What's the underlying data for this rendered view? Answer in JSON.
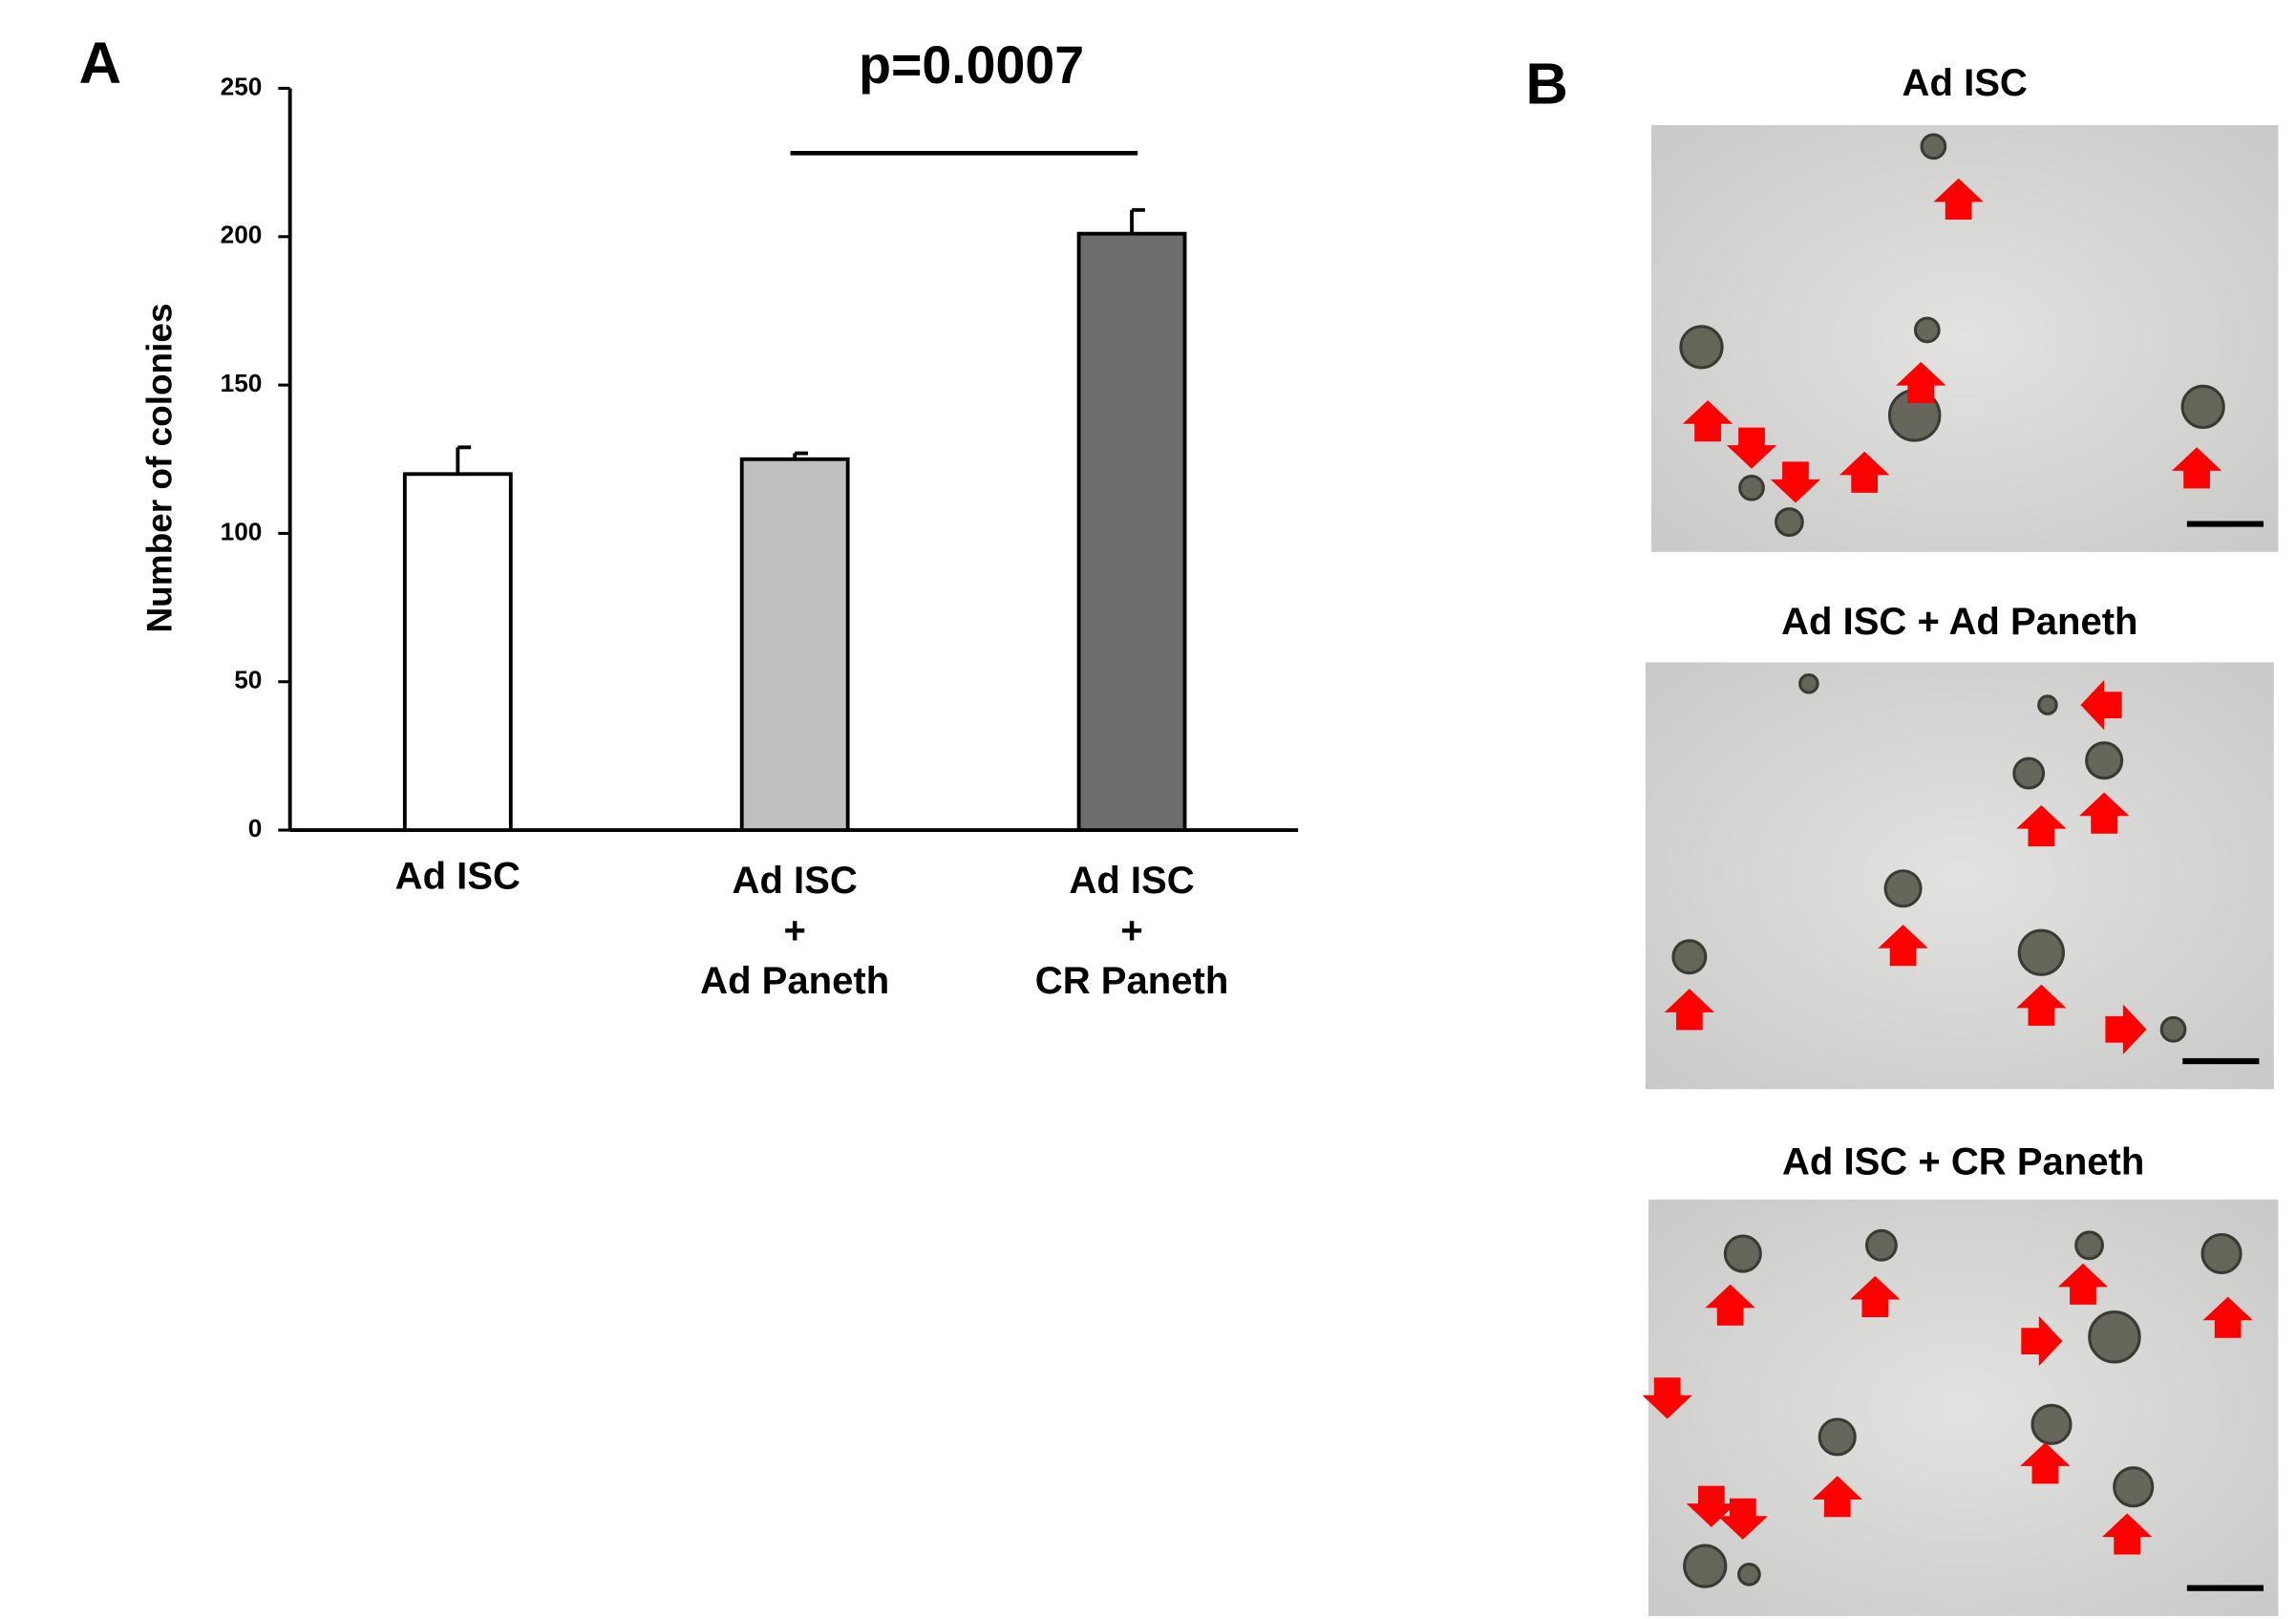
{
  "chart_data": {
    "type": "bar",
    "panel_label": "A",
    "ylabel": "Number  of colonies",
    "categories": [
      [
        "Ad ISC"
      ],
      [
        "Ad ISC",
        "+",
        "Ad Paneth"
      ],
      [
        "Ad ISC",
        "+",
        "CR Paneth"
      ]
    ],
    "values": [
      120,
      125,
      201
    ],
    "errors": [
      9,
      2,
      8
    ],
    "colors": [
      "#ffffff",
      "#bfbfbf",
      "#6d6d6d"
    ],
    "ylim": [
      0,
      250
    ],
    "yticks": [
      0,
      50,
      100,
      150,
      200,
      250
    ],
    "annotation": "p=0.0007"
  },
  "panel_b": {
    "label": "B",
    "images": [
      {
        "title": "Ad ISC"
      },
      {
        "title": "Ad ISC + Ad Paneth"
      },
      {
        "title": "Ad ISC +  CR Paneth"
      }
    ]
  }
}
